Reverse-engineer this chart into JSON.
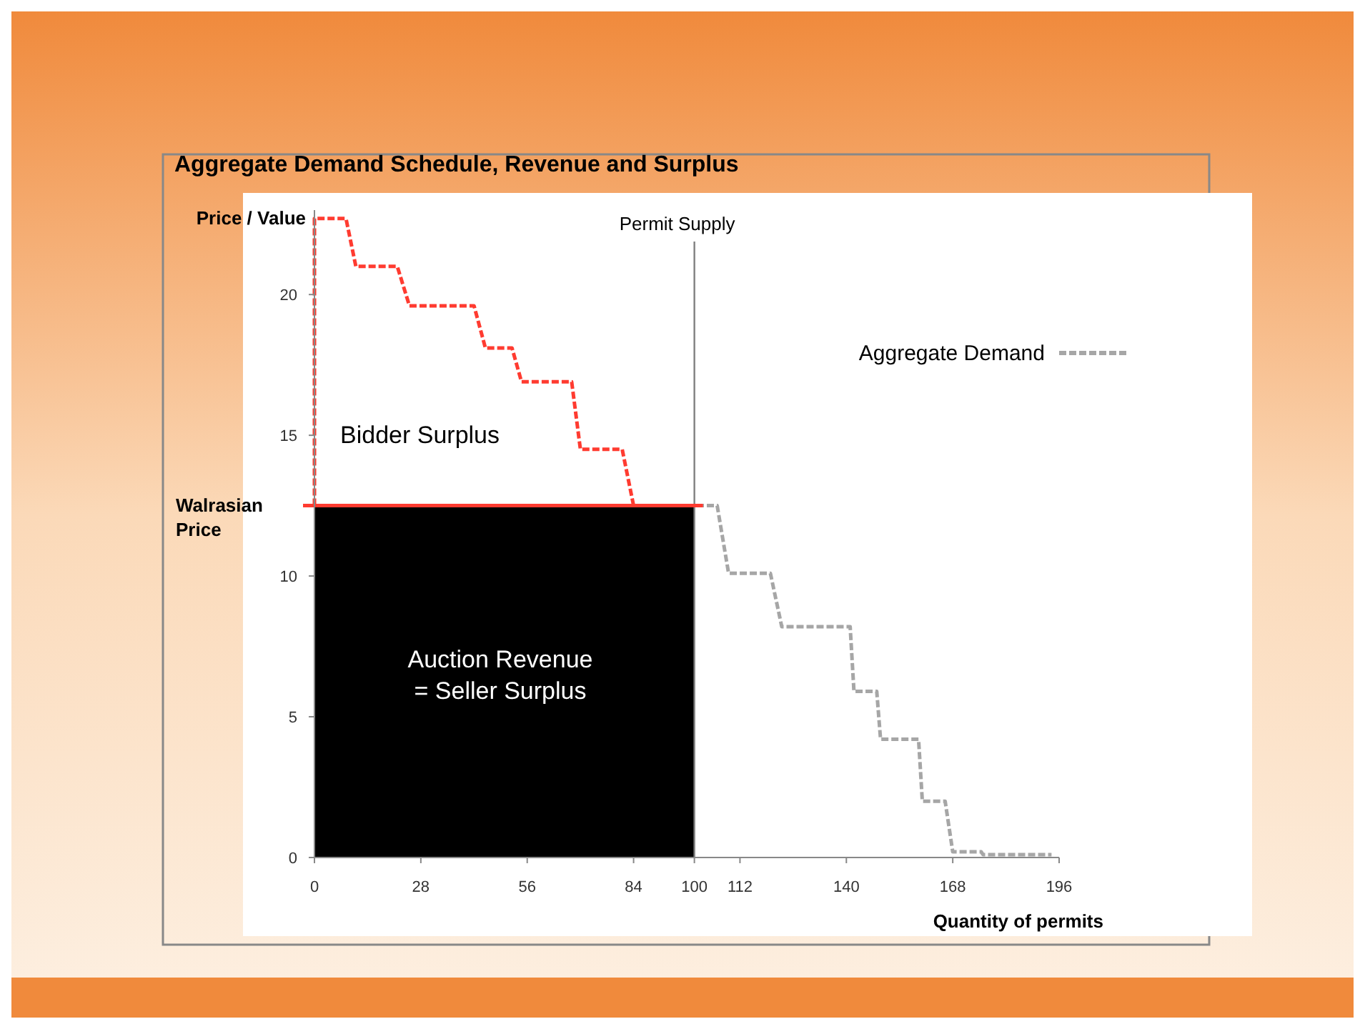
{
  "chart_data": {
    "type": "line",
    "title": "Aggregate Demand Schedule, Revenue and Surplus",
    "xlabel": "Quantity of permits",
    "ylabel": "Price / Value",
    "xlim": [
      0,
      196
    ],
    "xticks": [
      0,
      28,
      56,
      84,
      100,
      112,
      140,
      168,
      196
    ],
    "ylim": [
      0,
      23
    ],
    "yticks": [
      0,
      5,
      10,
      15,
      20
    ],
    "legend": "top right",
    "line_style": "dashed",
    "marker": "none",
    "series": [
      {
        "type": "area",
        "color": "#000000",
        "x": [
          0,
          100
        ],
        "values": [
          12.5,
          12.5
        ]
      },
      {
        "color": "#ff3b30",
        "x": [
          0,
          0,
          8.3,
          10.9,
          21.8,
          25,
          42,
          45,
          52,
          54.5,
          67.7,
          70,
          81,
          84,
          98
        ],
        "values": [
          12.5,
          22.7,
          22.7,
          21,
          21,
          19.6,
          19.6,
          18.1,
          18.1,
          16.9,
          16.9,
          14.5,
          14.5,
          12.5,
          12.5
        ]
      },
      {
        "name": "Aggregate Demand",
        "color": "#a6a6a6",
        "x": [
          98,
          106,
          109,
          120,
          123,
          141,
          142,
          148,
          149,
          159,
          160,
          166,
          168,
          175.5,
          176,
          194
        ],
        "values": [
          12.5,
          12.5,
          10.1,
          10.1,
          8.2,
          8.2,
          5.9,
          5.9,
          4.2,
          4.2,
          2,
          2,
          0.2,
          0.2,
          0.1,
          0.1
        ]
      }
    ],
    "ref_lines": [
      {
        "axis": "x",
        "value": 100,
        "label": "Permit Supply",
        "color": "#808080"
      },
      {
        "axis": "y",
        "value": 12.5,
        "label": "Walrasian Price",
        "color": "#ff3b30"
      }
    ],
    "annotations": [
      "Bidder Surplus",
      "Auction Revenue = Seller Surplus"
    ]
  }
}
